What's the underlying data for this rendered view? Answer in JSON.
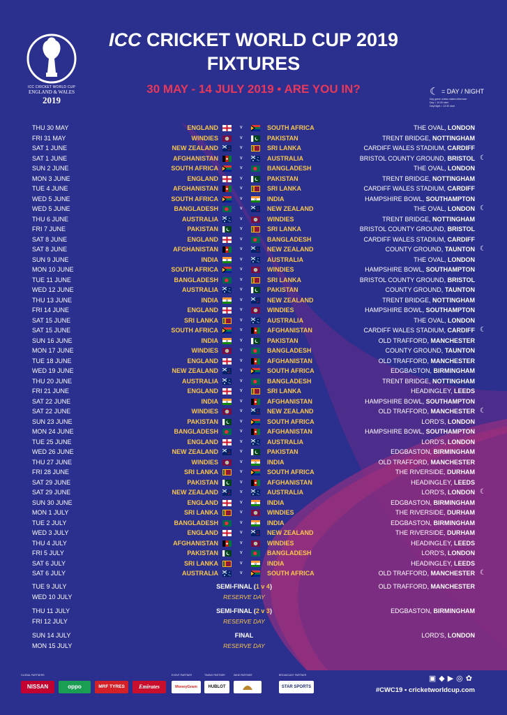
{
  "header": {
    "logo": {
      "line1": "ICC CRICKET WORLD CUP",
      "line2": "ENGLAND & WALES",
      "line3": "2019"
    },
    "title_icc": "ICC",
    "title_rest": "CRICKET WORLD CUP 2019",
    "title_line2": "FIXTURES",
    "subtitle": "30 MAY - 14 JULY 2019 • ARE YOU IN?",
    "daynight_label": "= DAY / NIGHT",
    "daynight_small": [
      "Day game unless stated otherwise",
      "Day = 10:30 start",
      "Day/Night = 13:30 start"
    ]
  },
  "fixtures": [
    {
      "date": "THU 30 MAY",
      "home": "ENGLAND",
      "away": "SOUTH AFRICA",
      "venue": "THE OVAL,",
      "city": "LONDON",
      "night": false,
      "hf": "eng",
      "af": "rsa"
    },
    {
      "date": "FRI 31 MAY",
      "home": "WINDIES",
      "away": "PAKISTAN",
      "venue": "TRENT BRIDGE,",
      "city": "NOTTINGHAM",
      "night": false,
      "hf": "wi",
      "af": "pak"
    },
    {
      "date": "SAT 1 JUNE",
      "home": "NEW ZEALAND",
      "away": "SRI LANKA",
      "venue": "CARDIFF WALES STADIUM,",
      "city": "CARDIFF",
      "night": false,
      "hf": "nz",
      "af": "sl"
    },
    {
      "date": "SAT 1 JUNE",
      "home": "AFGHANISTAN",
      "away": "AUSTRALIA",
      "venue": "BRISTOL COUNTY GROUND,",
      "city": "BRISTOL",
      "night": true,
      "hf": "afg",
      "af": "aus"
    },
    {
      "date": "SUN 2 JUNE",
      "home": "SOUTH AFRICA",
      "away": "BANGLADESH",
      "venue": "THE OVAL,",
      "city": "LONDON",
      "night": false,
      "hf": "rsa",
      "af": "ban"
    },
    {
      "date": "MON 3 JUNE",
      "home": "ENGLAND",
      "away": "PAKISTAN",
      "venue": "TRENT BRIDGE,",
      "city": "NOTTINGHAM",
      "night": false,
      "hf": "eng",
      "af": "pak"
    },
    {
      "date": "TUE 4 JUNE",
      "home": "AFGHANISTAN",
      "away": "SRI LANKA",
      "venue": "CARDIFF WALES STADIUM,",
      "city": "CARDIFF",
      "night": false,
      "hf": "afg",
      "af": "sl"
    },
    {
      "date": "WED 5 JUNE",
      "home": "SOUTH AFRICA",
      "away": "INDIA",
      "venue": "HAMPSHIRE BOWL,",
      "city": "SOUTHAMPTON",
      "night": false,
      "hf": "rsa",
      "af": "ind"
    },
    {
      "date": "WED 5 JUNE",
      "home": "BANGLADESH",
      "away": "NEW ZEALAND",
      "venue": "THE OVAL,",
      "city": "LONDON",
      "night": true,
      "hf": "ban",
      "af": "nz"
    },
    {
      "date": "THU 6 JUNE",
      "home": "AUSTRALIA",
      "away": "WINDIES",
      "venue": "TRENT BRIDGE,",
      "city": "NOTTINGHAM",
      "night": false,
      "hf": "aus",
      "af": "wi"
    },
    {
      "date": "FRI 7 JUNE",
      "home": "PAKISTAN",
      "away": "SRI LANKA",
      "venue": "BRISTOL COUNTY GROUND,",
      "city": "BRISTOL",
      "night": false,
      "hf": "pak",
      "af": "sl"
    },
    {
      "date": "SAT 8 JUNE",
      "home": "ENGLAND",
      "away": "BANGLADESH",
      "venue": "CARDIFF WALES STADIUM,",
      "city": "CARDIFF",
      "night": false,
      "hf": "eng",
      "af": "ban"
    },
    {
      "date": "SAT 8 JUNE",
      "home": "AFGHANISTAN",
      "away": "NEW ZEALAND",
      "venue": "COUNTY GROUND,",
      "city": "TAUNTON",
      "night": true,
      "hf": "afg",
      "af": "nz"
    },
    {
      "date": "SUN 9 JUNE",
      "home": "INDIA",
      "away": "AUSTRALIA",
      "venue": "THE OVAL,",
      "city": "LONDON",
      "night": false,
      "hf": "ind",
      "af": "aus"
    },
    {
      "date": "MON 10 JUNE",
      "home": "SOUTH AFRICA",
      "away": "WINDIES",
      "venue": "HAMPSHIRE BOWL,",
      "city": "SOUTHAMPTON",
      "night": false,
      "hf": "rsa",
      "af": "wi"
    },
    {
      "date": "TUE 11 JUNE",
      "home": "BANGLADESH",
      "away": "SRI LANKA",
      "venue": "BRISTOL COUNTY GROUND,",
      "city": "BRISTOL",
      "night": false,
      "hf": "ban",
      "af": "sl"
    },
    {
      "date": "WED 12 JUNE",
      "home": "AUSTRALIA",
      "away": "PAKISTAN",
      "venue": "COUNTY GROUND,",
      "city": "TAUNTON",
      "night": false,
      "hf": "aus",
      "af": "pak"
    },
    {
      "date": "THU 13 JUNE",
      "home": "INDIA",
      "away": "NEW ZEALAND",
      "venue": "TRENT BRIDGE,",
      "city": "NOTTINGHAM",
      "night": false,
      "hf": "ind",
      "af": "nz"
    },
    {
      "date": "FRI 14 JUNE",
      "home": "ENGLAND",
      "away": "WINDIES",
      "venue": "HAMPSHIRE BOWL,",
      "city": "SOUTHAMPTON",
      "night": false,
      "hf": "eng",
      "af": "wi"
    },
    {
      "date": "SAT 15 JUNE",
      "home": "SRI LANKA",
      "away": "AUSTRALIA",
      "venue": "THE OVAL,",
      "city": "LONDON",
      "night": false,
      "hf": "sl",
      "af": "aus"
    },
    {
      "date": "SAT 15 JUNE",
      "home": "SOUTH AFRICA",
      "away": "AFGHANISTAN",
      "venue": "CARDIFF WALES STADIUM,",
      "city": "CARDIFF",
      "night": true,
      "hf": "rsa",
      "af": "afg"
    },
    {
      "date": "SUN 16 JUNE",
      "home": "INDIA",
      "away": "PAKISTAN",
      "venue": "OLD TRAFFORD,",
      "city": "MANCHESTER",
      "night": false,
      "hf": "ind",
      "af": "pak"
    },
    {
      "date": "MON 17 JUNE",
      "home": "WINDIES",
      "away": "BANGLADESH",
      "venue": "COUNTY GROUND,",
      "city": "TAUNTON",
      "night": false,
      "hf": "wi",
      "af": "ban"
    },
    {
      "date": "TUE 18 JUNE",
      "home": "ENGLAND",
      "away": "AFGHANISTAN",
      "venue": "OLD TRAFFORD,",
      "city": "MANCHESTER",
      "night": false,
      "hf": "eng",
      "af": "afg"
    },
    {
      "date": "WED 19 JUNE",
      "home": "NEW ZEALAND",
      "away": "SOUTH AFRICA",
      "venue": "EDGBASTON,",
      "city": "BIRMINGHAM",
      "night": false,
      "hf": "nz",
      "af": "rsa"
    },
    {
      "date": "THU 20 JUNE",
      "home": "AUSTRALIA",
      "away": "BANGLADESH",
      "venue": "TRENT BRIDGE,",
      "city": "NOTTINGHAM",
      "night": false,
      "hf": "aus",
      "af": "ban"
    },
    {
      "date": "FRI 21 JUNE",
      "home": "ENGLAND",
      "away": "SRI LANKA",
      "venue": "HEADINGLEY,",
      "city": "LEEDS",
      "night": false,
      "hf": "eng",
      "af": "sl"
    },
    {
      "date": "SAT 22 JUNE",
      "home": "INDIA",
      "away": "AFGHANISTAN",
      "venue": "HAMPSHIRE BOWL,",
      "city": "SOUTHAMPTON",
      "night": false,
      "hf": "ind",
      "af": "afg"
    },
    {
      "date": "SAT 22 JUNE",
      "home": "WINDIES",
      "away": "NEW ZEALAND",
      "venue": "OLD TRAFFORD,",
      "city": "MANCHESTER",
      "night": true,
      "hf": "wi",
      "af": "nz"
    },
    {
      "date": "SUN 23 JUNE",
      "home": "PAKISTAN",
      "away": "SOUTH AFRICA",
      "venue": "LORD'S,",
      "city": "LONDON",
      "night": false,
      "hf": "pak",
      "af": "rsa"
    },
    {
      "date": "MON 24 JUNE",
      "home": "BANGLADESH",
      "away": "AFGHANISTAN",
      "venue": "HAMPSHIRE BOWL,",
      "city": "SOUTHAMPTON",
      "night": false,
      "hf": "ban",
      "af": "afg"
    },
    {
      "date": "TUE 25 JUNE",
      "home": "ENGLAND",
      "away": "AUSTRALIA",
      "venue": "LORD'S,",
      "city": "LONDON",
      "night": false,
      "hf": "eng",
      "af": "aus"
    },
    {
      "date": "WED 26 JUNE",
      "home": "NEW ZEALAND",
      "away": "PAKISTAN",
      "venue": "EDGBASTON,",
      "city": "BIRMINGHAM",
      "night": false,
      "hf": "nz",
      "af": "pak"
    },
    {
      "date": "THU 27 JUNE",
      "home": "WINDIES",
      "away": "INDIA",
      "venue": "OLD TRAFFORD,",
      "city": "MANCHESTER",
      "night": false,
      "hf": "wi",
      "af": "ind"
    },
    {
      "date": "FRI 28 JUNE",
      "home": "SRI LANKA",
      "away": "SOUTH AFRICA",
      "venue": "THE RIVERSIDE,",
      "city": "DURHAM",
      "night": false,
      "hf": "sl",
      "af": "rsa"
    },
    {
      "date": "SAT 29 JUNE",
      "home": "PAKISTAN",
      "away": "AFGHANISTAN",
      "venue": "HEADINGLEY,",
      "city": "LEEDS",
      "night": false,
      "hf": "pak",
      "af": "afg"
    },
    {
      "date": "SAT 29 JUNE",
      "home": "NEW ZEALAND",
      "away": "AUSTRALIA",
      "venue": "LORD'S,",
      "city": "LONDON",
      "night": true,
      "hf": "nz",
      "af": "aus"
    },
    {
      "date": "SUN 30 JUNE",
      "home": "ENGLAND",
      "away": "INDIA",
      "venue": "EDGBASTON,",
      "city": "BIRMINGHAM",
      "night": false,
      "hf": "eng",
      "af": "ind"
    },
    {
      "date": "MON 1 JULY",
      "home": "SRI LANKA",
      "away": "WINDIES",
      "venue": "THE RIVERSIDE,",
      "city": "DURHAM",
      "night": false,
      "hf": "sl",
      "af": "wi"
    },
    {
      "date": "TUE 2 JULY",
      "home": "BANGLADESH",
      "away": "INDIA",
      "venue": "EDGBASTON,",
      "city": "BIRMINGHAM",
      "night": false,
      "hf": "ban",
      "af": "ind"
    },
    {
      "date": "WED 3 JULY",
      "home": "ENGLAND",
      "away": "NEW ZEALAND",
      "venue": "THE RIVERSIDE,",
      "city": "DURHAM",
      "night": false,
      "hf": "eng",
      "af": "nz"
    },
    {
      "date": "THU 4 JULY",
      "home": "AFGHANISTAN",
      "away": "WINDIES",
      "venue": "HEADINGLEY,",
      "city": "LEEDS",
      "night": false,
      "hf": "afg",
      "af": "wi"
    },
    {
      "date": "FRI 5 JULY",
      "home": "PAKISTAN",
      "away": "BANGLADESH",
      "venue": "LORD'S,",
      "city": "LONDON",
      "night": false,
      "hf": "pak",
      "af": "ban"
    },
    {
      "date": "SAT 6 JULY",
      "home": "SRI LANKA",
      "away": "INDIA",
      "venue": "HEADINGLEY,",
      "city": "LEEDS",
      "night": false,
      "hf": "sl",
      "af": "ind"
    },
    {
      "date": "SAT 6 JULY",
      "home": "AUSTRALIA",
      "away": "SOUTH AFRICA",
      "venue": "OLD TRAFFORD,",
      "city": "MANCHESTER",
      "night": true,
      "hf": "aus",
      "af": "rsa"
    }
  ],
  "knockouts": [
    {
      "date": "TUE 9 JULY",
      "name": "SEMI-FINAL",
      "hl": "1 v 4",
      "venue": "OLD TRAFFORD,",
      "city": "MANCHESTER",
      "reserve_date": "WED 10 JULY",
      "reserve": "RESERVE DAY"
    },
    {
      "date": "THU 11 JULY",
      "name": "SEMI-FINAL",
      "hl": "2 v 3",
      "venue": "EDGBASTON,",
      "city": "BIRMINGHAM",
      "reserve_date": "FRI 12 JULY",
      "reserve": "RESERVE DAY"
    },
    {
      "date": "SUN 14 JULY",
      "name": "FINAL",
      "hl": "",
      "venue": "LORD'S,",
      "city": "LONDON",
      "reserve_date": "MON 15 JULY",
      "reserve": "RESERVE DAY"
    }
  ],
  "footer": {
    "captions": {
      "global": "GLOBAL PARTNERS",
      "event": "EVENT PARTNER",
      "timing": "TIMING PARTNER",
      "wine": "WINE PARTNER",
      "broadcast": "BROADCAST PARTNER"
    },
    "partners": [
      "NISSAN",
      "oppo",
      "MRF TYRES",
      "Emirates",
      "MoneyGram",
      "HUBLOT",
      "",
      "STAR SPORTS"
    ],
    "social_icons": [
      "facebook-icon",
      "twitter-icon",
      "youtube-icon",
      "instagram-icon",
      "snapchat-icon"
    ],
    "hashtag": "#CWC19",
    "separator": "•",
    "website": "cricketworldcup.com"
  },
  "colors": {
    "background": "#2b2f8e",
    "swoosh": "#7c2c84",
    "accent_gold": "#f8c74c",
    "accent_pink": "#e8385a"
  }
}
